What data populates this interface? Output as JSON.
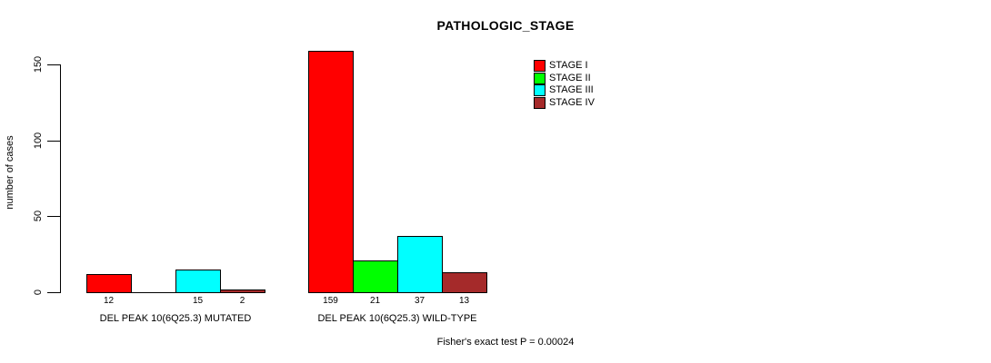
{
  "title": "PATHOLOGIC_STAGE",
  "y_axis_label": "number of cases",
  "footer_note": "Fisher's exact test P = 0.00024",
  "chart_data": {
    "type": "bar",
    "title": "PATHOLOGIC_STAGE",
    "xlabel": "",
    "ylabel": "number of cases",
    "categories": [
      "DEL PEAK 10(6Q25.3) MUTATED",
      "DEL PEAK 10(6Q25.3) WILD-TYPE"
    ],
    "series": [
      {
        "name": "STAGE I",
        "color": "#ff0000",
        "values": [
          12,
          159
        ],
        "count_labels": [
          "12",
          "159"
        ]
      },
      {
        "name": "STAGE II",
        "color": "#00ff00",
        "values": [
          0,
          21
        ],
        "count_labels": [
          "",
          "21"
        ]
      },
      {
        "name": "STAGE III",
        "color": "#00ffff",
        "values": [
          15,
          37
        ],
        "count_labels": [
          "15",
          "37"
        ]
      },
      {
        "name": "STAGE IV",
        "color": "#a52a2a",
        "values": [
          2,
          13
        ],
        "count_labels": [
          "2",
          "13"
        ]
      }
    ],
    "yticks": [
      0,
      50,
      100,
      150
    ],
    "ylim": [
      0,
      159
    ],
    "grid": false,
    "legend_position": "top-right-inside",
    "bar_count_labels_shown": true,
    "annotation": "Fisher's exact test P = 0.00024"
  }
}
